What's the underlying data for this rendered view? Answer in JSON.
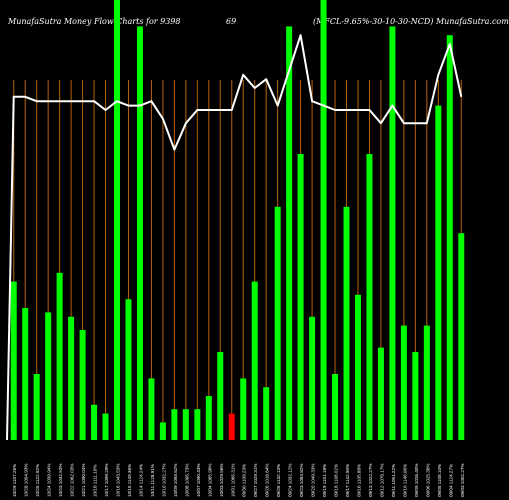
{
  "header": {
    "left": "MunafaSutra  Money Flow  Charts for 9398",
    "mid": "69",
    "right": "(MFCL-9.65%-30-10-30-NCD) MunafaSutra.com"
  },
  "colors": {
    "background": "#000000",
    "up_bar": "#00ff00",
    "down_bar": "#ff0000",
    "grid": "#b8620b",
    "line": "#ffffff",
    "text": "#ffffff"
  },
  "chart_data": {
    "type": "bar",
    "grid": "vertical",
    "ylim": [
      0,
      100
    ],
    "categories": [
      "10/29 1107.26%",
      "10/28 1004.93%",
      "10/25 1122.92%",
      "10/24 1039.94%",
      "10/23 1042.53%",
      "10/22 1062.03%",
      "10/21 1090.04%",
      "10/18 1111.10%",
      "10/17 1099.29%",
      "10/16 1043.53%",
      "10/15 1149.36%",
      "10/14 1124.24%",
      "10/11 1128.91%",
      "10/10 1032.27%",
      "10/09 1093.62%",
      "10/08 1095.73%",
      "10/07 1090.43%",
      "10/04 1085.98%",
      "10/03 1029.56%",
      "10/01 1065.31%",
      "09/30 1109.23%",
      "09/27 1029.31%",
      "09/26 1016.64%",
      "09/25 1132.13%",
      "09/24 1032.12%",
      "09/23 1084.82%",
      "09/20 1049.33%",
      "09/19 1151.18%",
      "09/18 1108.02%",
      "09/17 1142.95%",
      "09/16 1105.88%",
      "09/13 1022.27%",
      "09/12 1076.17%",
      "09/11 1051.22%",
      "09/10 1148.06%",
      "09/09 1026.40%",
      "09/06 1025.38%",
      "09/05 1108.10%",
      "09/04 1124.27%",
      "09/03 1002.27%"
    ],
    "series": [
      {
        "values": [
          36,
          30,
          15,
          29,
          38,
          28,
          25,
          8,
          6,
          100,
          32,
          94,
          14,
          4,
          7,
          7,
          7,
          10,
          20,
          6,
          14,
          36,
          12,
          53,
          94,
          65,
          28,
          100,
          15,
          53,
          33,
          65,
          21,
          94,
          26,
          20,
          26,
          76,
          92,
          47
        ],
        "directions": [
          "up",
          "up",
          "up",
          "up",
          "up",
          "up",
          "up",
          "up",
          "up",
          "up",
          "up",
          "up",
          "up",
          "up",
          "up",
          "up",
          "up",
          "up",
          "up",
          "down",
          "up",
          "up",
          "up",
          "up",
          "up",
          "up",
          "up",
          "up",
          "up",
          "up",
          "up",
          "up",
          "up",
          "up",
          "up",
          "up",
          "up",
          "up",
          "up",
          "up"
        ]
      },
      {
        "values": [
          78,
          78,
          77,
          77,
          77,
          77,
          77,
          77,
          75,
          77,
          76,
          76,
          77,
          73,
          66,
          72,
          75,
          75,
          75,
          75,
          83,
          80,
          82,
          76,
          84,
          92,
          77,
          76,
          75,
          75,
          75,
          75,
          72,
          76,
          72,
          72,
          72,
          83,
          90,
          78
        ]
      }
    ]
  }
}
